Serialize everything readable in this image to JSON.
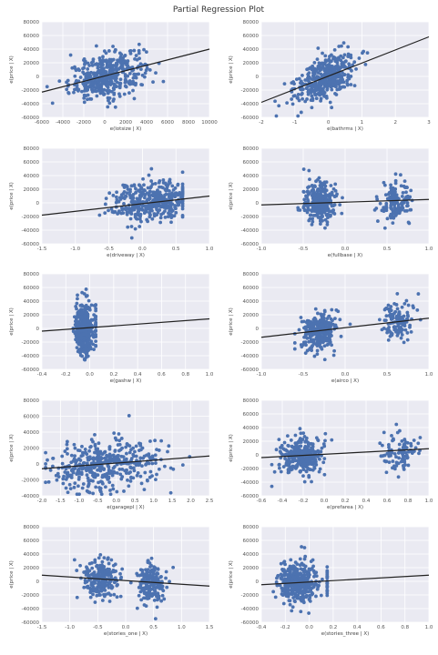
{
  "figure": {
    "title": "Partial Regression Plot"
  },
  "chart_data": [
    {
      "type": "scatter",
      "xlabel": "e(lotsize | X)",
      "ylabel": "e(price | X)",
      "xlim": [
        -6000,
        10000
      ],
      "ylim": [
        -60000,
        80000
      ],
      "xticks": [
        -6000,
        -4000,
        -2000,
        0,
        2000,
        4000,
        6000,
        8000,
        10000
      ],
      "xtick_labels": [
        "-6000",
        "-4000",
        "-2000",
        "0",
        "2000",
        "4000",
        "6000",
        "8000",
        "10000"
      ],
      "yticks": [
        -60000,
        -40000,
        -20000,
        0,
        20000,
        40000,
        60000,
        80000
      ],
      "ytick_labels": [
        "-60000",
        "-40000",
        "-20000",
        "0",
        "20000",
        "40000",
        "60000",
        "80000"
      ],
      "fit_line": {
        "x": [
          -6000,
          10000
        ],
        "y": [
          -23000,
          40000
        ]
      },
      "cloud": {
        "x_center": 200,
        "x_spread": 1800,
        "x_min": -5500,
        "x_max": 9800,
        "slope": 3.8,
        "intercept": 0,
        "noise": 16000,
        "n": 420
      },
      "color": "#4c72b0",
      "line_color": "#222222",
      "grid": true
    },
    {
      "type": "scatter",
      "xlabel": "e(bathrms | X)",
      "ylabel": "e(price | X)",
      "xlim": [
        -2,
        3
      ],
      "ylim": [
        -60000,
        80000
      ],
      "xticks": [
        -2,
        -1,
        0,
        1,
        2,
        3
      ],
      "xtick_labels": [
        "-2",
        "-1",
        "0",
        "1",
        "2",
        "3"
      ],
      "yticks": [
        -60000,
        -40000,
        -20000,
        0,
        20000,
        40000,
        60000,
        80000
      ],
      "ytick_labels": [
        "-60000",
        "-40000",
        "-20000",
        "0",
        "20000",
        "40000",
        "60000",
        "80000"
      ],
      "fit_line": {
        "x": [
          -2,
          3
        ],
        "y": [
          -38000,
          58000
        ]
      },
      "cloud": {
        "x_center": -0.1,
        "x_spread": 0.45,
        "x_min": -1.8,
        "x_max": 2.9,
        "slope": 19000,
        "intercept": 0,
        "noise": 15000,
        "n": 420
      },
      "color": "#4c72b0",
      "line_color": "#222222",
      "grid": true
    },
    {
      "type": "scatter",
      "xlabel": "e(driveway | X)",
      "ylabel": "e(price | X)",
      "xlim": [
        -1.5,
        1.0
      ],
      "ylim": [
        -60000,
        80000
      ],
      "xticks": [
        -1.5,
        -1.0,
        -0.5,
        0.0,
        0.5,
        1.0
      ],
      "xtick_labels": [
        "-1.5",
        "-1.0",
        "-0.5",
        "0.0",
        "0.5",
        "1.0"
      ],
      "yticks": [
        -60000,
        -40000,
        -20000,
        0,
        20000,
        40000,
        60000,
        80000
      ],
      "ytick_labels": [
        "-60000",
        "-40000",
        "-20000",
        "0",
        "20000",
        "40000",
        "60000",
        "80000"
      ],
      "fit_line": {
        "x": [
          -1.5,
          1.0
        ],
        "y": [
          -18000,
          10000
        ]
      },
      "cloud": {
        "x_center": 0.15,
        "x_spread": 0.3,
        "x_min": -1.1,
        "x_max": 0.6,
        "slope": 11000,
        "intercept": 0,
        "noise": 15000,
        "n": 420
      },
      "color": "#4c72b0",
      "line_color": "#222222",
      "grid": true
    },
    {
      "type": "scatter",
      "xlabel": "e(fullbase | X)",
      "ylabel": "e(price | X)",
      "xlim": [
        -1.0,
        1.0
      ],
      "ylim": [
        -60000,
        80000
      ],
      "xticks": [
        -1.0,
        -0.5,
        0.0,
        0.5,
        1.0
      ],
      "xtick_labels": [
        "-1.0",
        "-0.5",
        "0.0",
        "0.5",
        "1.0"
      ],
      "yticks": [
        -60000,
        -40000,
        -20000,
        0,
        20000,
        40000,
        60000,
        80000
      ],
      "ytick_labels": [
        "-60000",
        "-40000",
        "-20000",
        "0",
        "20000",
        "40000",
        "60000",
        "80000"
      ],
      "fit_line": {
        "x": [
          -1.0,
          1.0
        ],
        "y": [
          -3000,
          5000
        ]
      },
      "cloud": {
        "x_center": -0.3,
        "x_spread": 0.1,
        "x_min": -0.8,
        "x_max": 0.9,
        "slope": 4000,
        "intercept": 0,
        "noise": 15000,
        "n": 420,
        "bimodal_x": 0.6,
        "bimodal_frac": 0.35
      },
      "color": "#4c72b0",
      "line_color": "#222222",
      "grid": true
    },
    {
      "type": "scatter",
      "xlabel": "e(gashw | X)",
      "ylabel": "e(price | X)",
      "xlim": [
        -0.4,
        1.0
      ],
      "ylim": [
        -60000,
        80000
      ],
      "xticks": [
        -0.4,
        -0.2,
        0.0,
        0.2,
        0.4,
        0.6,
        0.8,
        1.0
      ],
      "xtick_labels": [
        "-0.4",
        "-0.2",
        "0.0",
        "0.2",
        "0.4",
        "0.6",
        "0.8",
        "1.0"
      ],
      "yticks": [
        -60000,
        -40000,
        -20000,
        0,
        20000,
        40000,
        60000,
        80000
      ],
      "ytick_labels": [
        "-60000",
        "-40000",
        "-20000",
        "0",
        "20000",
        "40000",
        "60000",
        "80000"
      ],
      "fit_line": {
        "x": [
          -0.4,
          1.0
        ],
        "y": [
          -4000,
          14000
        ]
      },
      "cloud": {
        "x_center": -0.05,
        "x_spread": 0.04,
        "x_min": -0.15,
        "x_max": 0.05,
        "slope": 12000,
        "intercept": 0,
        "noise": 18000,
        "n": 420,
        "bimodal_x": 0.92,
        "bimodal_frac": 0.04
      },
      "color": "#4c72b0",
      "line_color": "#222222",
      "grid": true
    },
    {
      "type": "scatter",
      "xlabel": "e(airco | X)",
      "ylabel": "e(price | X)",
      "xlim": [
        -1.0,
        1.0
      ],
      "ylim": [
        -60000,
        80000
      ],
      "xticks": [
        -1.0,
        -0.5,
        0.0,
        0.5,
        1.0
      ],
      "xtick_labels": [
        "-1.0",
        "-0.5",
        "0.0",
        "0.5",
        "1.0"
      ],
      "yticks": [
        -60000,
        -40000,
        -20000,
        0,
        20000,
        40000,
        60000,
        80000
      ],
      "ytick_labels": [
        "-60000",
        "-40000",
        "-20000",
        "0",
        "20000",
        "40000",
        "60000",
        "80000"
      ],
      "fit_line": {
        "x": [
          -1.0,
          1.0
        ],
        "y": [
          -13000,
          15000
        ]
      },
      "cloud": {
        "x_center": -0.3,
        "x_spread": 0.1,
        "x_min": -0.6,
        "x_max": 0.9,
        "slope": 14000,
        "intercept": 0,
        "noise": 14000,
        "n": 420,
        "bimodal_x": 0.62,
        "bimodal_frac": 0.3
      },
      "color": "#4c72b0",
      "line_color": "#222222",
      "grid": true
    },
    {
      "type": "scatter",
      "xlabel": "e(garagepl | X)",
      "ylabel": "e(price | X)",
      "xlim": [
        -2.0,
        2.5
      ],
      "ylim": [
        -40000,
        80000
      ],
      "xticks": [
        -2.0,
        -1.5,
        -1.0,
        -0.5,
        0.0,
        0.5,
        1.0,
        1.5,
        2.0,
        2.5
      ],
      "xtick_labels": [
        "-2.0",
        "-1.5",
        "-1.0",
        "-0.5",
        "0.0",
        "0.5",
        "1.0",
        "1.5",
        "2.0",
        "2.5"
      ],
      "yticks": [
        -40000,
        -20000,
        0,
        20000,
        40000,
        60000,
        80000
      ],
      "ytick_labels": [
        "-40000",
        "-20000",
        "0",
        "20000",
        "40000",
        "60000",
        "80000"
      ],
      "fit_line": {
        "x": [
          -2.0,
          2.5
        ],
        "y": [
          -6000,
          10000
        ]
      },
      "cloud": {
        "x_center": -0.3,
        "x_spread": 0.7,
        "x_min": -1.9,
        "x_max": 2.3,
        "slope": 3600,
        "intercept": 0,
        "noise": 15000,
        "n": 420
      },
      "color": "#4c72b0",
      "line_color": "#222222",
      "grid": true
    },
    {
      "type": "scatter",
      "xlabel": "e(prefarea | X)",
      "ylabel": "e(price | X)",
      "xlim": [
        -0.6,
        1.0
      ],
      "ylim": [
        -60000,
        80000
      ],
      "xticks": [
        -0.6,
        -0.4,
        -0.2,
        0.0,
        0.2,
        0.4,
        0.6,
        0.8,
        1.0
      ],
      "xtick_labels": [
        "-0.6",
        "-0.4",
        "-0.2",
        "0.0",
        "0.2",
        "0.4",
        "0.6",
        "0.8",
        "1.0"
      ],
      "yticks": [
        -60000,
        -40000,
        -20000,
        0,
        20000,
        40000,
        60000,
        80000
      ],
      "ytick_labels": [
        "-60000",
        "-40000",
        "-20000",
        "0",
        "20000",
        "40000",
        "60000",
        "80000"
      ],
      "fit_line": {
        "x": [
          -0.6,
          1.0
        ],
        "y": [
          -4000,
          9000
        ]
      },
      "cloud": {
        "x_center": -0.2,
        "x_spread": 0.1,
        "x_min": -0.5,
        "x_max": 0.95,
        "slope": 8000,
        "intercept": 0,
        "noise": 14000,
        "n": 420,
        "bimodal_x": 0.72,
        "bimodal_frac": 0.22
      },
      "color": "#4c72b0",
      "line_color": "#222222",
      "grid": true
    },
    {
      "type": "scatter",
      "xlabel": "e(stories_one | X)",
      "ylabel": "e(price | X)",
      "xlim": [
        -1.5,
        1.5
      ],
      "ylim": [
        -60000,
        80000
      ],
      "xticks": [
        -1.5,
        -1.0,
        -0.5,
        0.0,
        0.5,
        1.0,
        1.5
      ],
      "xtick_labels": [
        "-1.5",
        "-1.0",
        "-0.5",
        "0.0",
        "0.5",
        "1.0",
        "1.5"
      ],
      "yticks": [
        -60000,
        -40000,
        -20000,
        0,
        20000,
        40000,
        60000,
        80000
      ],
      "ytick_labels": [
        "-60000",
        "-40000",
        "-20000",
        "0",
        "20000",
        "40000",
        "60000",
        "80000"
      ],
      "fit_line": {
        "x": [
          -1.5,
          1.5
        ],
        "y": [
          9000,
          -7000
        ]
      },
      "cloud": {
        "x_center": -0.45,
        "x_spread": 0.15,
        "x_min": -1.0,
        "x_max": 0.85,
        "slope": -5300,
        "intercept": 0,
        "noise": 14000,
        "n": 420,
        "bimodal_x": 0.45,
        "bimodal_frac": 0.45
      },
      "color": "#4c72b0",
      "line_color": "#222222",
      "grid": true
    },
    {
      "type": "scatter",
      "xlabel": "e(stories_three | X)",
      "ylabel": "e(price | X)",
      "xlim": [
        -0.4,
        1.0
      ],
      "ylim": [
        -60000,
        80000
      ],
      "xticks": [
        -0.4,
        -0.2,
        0.0,
        0.2,
        0.4,
        0.6,
        0.8,
        1.0
      ],
      "xtick_labels": [
        "-0.4",
        "-0.2",
        "0.0",
        "0.2",
        "0.4",
        "0.6",
        "0.8",
        "1.0"
      ],
      "yticks": [
        -60000,
        -40000,
        -20000,
        0,
        20000,
        40000,
        60000,
        80000
      ],
      "ytick_labels": [
        "-60000",
        "-40000",
        "-20000",
        "0",
        "20000",
        "40000",
        "60000",
        "80000"
      ],
      "fit_line": {
        "x": [
          -0.4,
          1.0
        ],
        "y": [
          -5000,
          9000
        ]
      },
      "cloud": {
        "x_center": -0.1,
        "x_spread": 0.08,
        "x_min": -0.3,
        "x_max": 0.15,
        "slope": 10000,
        "intercept": 0,
        "noise": 15000,
        "n": 420,
        "bimodal_x": 0.88,
        "bimodal_frac": 0.05
      },
      "color": "#4c72b0",
      "line_color": "#222222",
      "grid": true
    }
  ]
}
